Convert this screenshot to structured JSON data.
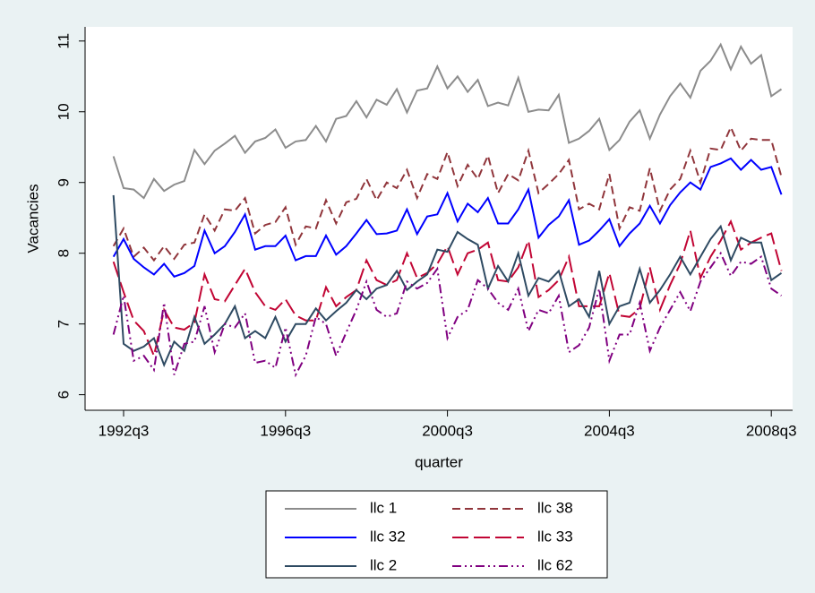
{
  "chart_data": {
    "type": "line",
    "ylabel": "Vacancies",
    "xlabel": "quarter",
    "x": [
      "1992q2",
      "1992q3",
      "1992q4",
      "1993q1",
      "1993q2",
      "1993q3",
      "1993q4",
      "1994q1",
      "1994q2",
      "1994q3",
      "1994q4",
      "1995q1",
      "1995q2",
      "1995q3",
      "1995q4",
      "1996q1",
      "1996q2",
      "1996q3",
      "1996q4",
      "1997q1",
      "1997q2",
      "1997q3",
      "1997q4",
      "1998q1",
      "1998q2",
      "1998q3",
      "1998q4",
      "1999q1",
      "1999q2",
      "1999q3",
      "1999q4",
      "2000q1",
      "2000q2",
      "2000q3",
      "2000q4",
      "2001q1",
      "2001q2",
      "2001q3",
      "2001q4",
      "2002q1",
      "2002q2",
      "2002q3",
      "2002q4",
      "2003q1",
      "2003q2",
      "2003q3",
      "2003q4",
      "2004q1",
      "2004q2",
      "2004q3",
      "2004q4",
      "2005q1",
      "2005q2",
      "2005q3",
      "2005q4",
      "2006q1",
      "2006q2",
      "2006q3",
      "2006q4",
      "2007q1",
      "2007q2",
      "2007q3",
      "2007q4",
      "2008q1",
      "2008q2",
      "2008q3",
      "2008q4"
    ],
    "xticks": [
      "1992q3",
      "1996q3",
      "2000q3",
      "2004q3",
      "2008q3"
    ],
    "ylim": [
      5.78,
      11.2
    ],
    "yticks": [
      6,
      7,
      8,
      9,
      10,
      11
    ],
    "grid": false,
    "series": [
      {
        "name": "llc 1",
        "color": "#8c8c8c",
        "style": "solid",
        "values": [
          9.37,
          8.92,
          8.9,
          8.78,
          9.05,
          8.88,
          8.97,
          9.02,
          9.46,
          9.26,
          9.45,
          9.55,
          9.66,
          9.42,
          9.58,
          9.63,
          9.75,
          9.49,
          9.58,
          9.6,
          9.8,
          9.58,
          9.9,
          9.94,
          10.15,
          9.92,
          10.17,
          10.1,
          10.32,
          9.99,
          10.3,
          10.33,
          10.64,
          10.33,
          10.5,
          10.28,
          10.45,
          10.08,
          10.13,
          10.09,
          10.48,
          10.0,
          10.03,
          10.02,
          10.24,
          9.56,
          9.62,
          9.73,
          9.9,
          9.46,
          9.6,
          9.86,
          10.02,
          9.62,
          9.96,
          10.22,
          10.4,
          10.2,
          10.58,
          10.72,
          10.95,
          10.6,
          10.92,
          10.68,
          10.8,
          10.22,
          10.32
        ]
      },
      {
        "name": "llc 38",
        "color": "#90353b",
        "style": "dash",
        "values": [
          8.1,
          8.35,
          7.95,
          8.08,
          7.9,
          8.1,
          7.92,
          8.12,
          8.15,
          8.55,
          8.32,
          8.62,
          8.6,
          8.78,
          8.28,
          8.4,
          8.44,
          8.65,
          8.12,
          8.38,
          8.35,
          8.75,
          8.42,
          8.72,
          8.77,
          9.05,
          8.75,
          9.0,
          8.92,
          9.18,
          8.78,
          9.12,
          9.05,
          9.43,
          8.95,
          9.25,
          9.05,
          9.38,
          8.85,
          9.12,
          9.03,
          9.45,
          8.85,
          8.98,
          9.12,
          9.32,
          8.62,
          8.7,
          8.62,
          9.12,
          8.35,
          8.65,
          8.6,
          9.2,
          8.6,
          8.9,
          9.05,
          9.45,
          9.0,
          9.48,
          9.46,
          9.78,
          9.45,
          9.62,
          9.6,
          9.6,
          9.08
        ]
      },
      {
        "name": "llc 32",
        "color": "#0000ff",
        "style": "solid",
        "values": [
          7.95,
          8.2,
          7.92,
          7.8,
          7.7,
          7.85,
          7.67,
          7.72,
          7.82,
          8.32,
          8.0,
          8.1,
          8.3,
          8.55,
          8.05,
          8.1,
          8.1,
          8.25,
          7.9,
          7.96,
          7.96,
          8.25,
          7.98,
          8.1,
          8.28,
          8.47,
          8.27,
          8.28,
          8.32,
          8.62,
          8.27,
          8.52,
          8.55,
          8.85,
          8.45,
          8.7,
          8.58,
          8.78,
          8.42,
          8.42,
          8.62,
          8.9,
          8.22,
          8.4,
          8.52,
          8.75,
          8.12,
          8.18,
          8.32,
          8.48,
          8.1,
          8.28,
          8.42,
          8.67,
          8.42,
          8.68,
          8.86,
          9.0,
          8.9,
          9.22,
          9.27,
          9.34,
          9.18,
          9.32,
          9.18,
          9.22,
          8.83
        ]
      },
      {
        "name": "llc 33",
        "color": "#c10534",
        "style": "longdash",
        "values": [
          7.88,
          7.45,
          7.05,
          6.9,
          6.55,
          7.2,
          6.95,
          6.92,
          7.02,
          7.7,
          7.35,
          7.32,
          7.55,
          7.78,
          7.45,
          7.25,
          7.2,
          7.35,
          7.12,
          7.05,
          7.05,
          7.52,
          7.25,
          7.38,
          7.48,
          7.9,
          7.62,
          7.55,
          7.62,
          8.0,
          7.65,
          7.72,
          7.85,
          8.1,
          7.7,
          8.0,
          8.05,
          8.15,
          7.62,
          7.6,
          7.8,
          8.18,
          7.38,
          7.48,
          7.62,
          7.95,
          7.25,
          7.25,
          7.25,
          7.72,
          7.12,
          7.1,
          7.22,
          7.8,
          7.2,
          7.55,
          7.85,
          8.32,
          7.65,
          7.95,
          8.18,
          8.45,
          8.05,
          8.15,
          8.22,
          8.28,
          7.75
        ]
      },
      {
        "name": "llc 2",
        "color": "#2e4a62",
        "style": "solid",
        "values": [
          8.82,
          6.72,
          6.62,
          6.68,
          6.8,
          6.42,
          6.75,
          6.62,
          7.1,
          6.72,
          6.85,
          7.0,
          7.25,
          6.8,
          6.9,
          6.8,
          7.1,
          6.75,
          7.0,
          7.0,
          7.22,
          7.05,
          7.18,
          7.3,
          7.48,
          7.35,
          7.5,
          7.55,
          7.75,
          7.48,
          7.6,
          7.7,
          8.05,
          8.02,
          8.3,
          8.2,
          8.12,
          7.5,
          7.82,
          7.6,
          8.0,
          7.4,
          7.65,
          7.6,
          7.75,
          7.25,
          7.35,
          7.1,
          7.75,
          7.0,
          7.25,
          7.3,
          7.78,
          7.3,
          7.48,
          7.7,
          7.95,
          7.7,
          7.95,
          8.2,
          8.38,
          7.9,
          8.22,
          8.15,
          8.15,
          7.62,
          7.72
        ]
      },
      {
        "name": "llc 62",
        "color": "#800080",
        "style": "dashdotdot",
        "values": [
          6.85,
          7.4,
          6.48,
          6.55,
          6.35,
          7.3,
          6.28,
          6.72,
          6.75,
          7.25,
          6.6,
          7.0,
          6.95,
          7.15,
          6.45,
          6.48,
          6.38,
          6.95,
          6.28,
          6.55,
          7.1,
          7.0,
          6.55,
          6.88,
          7.2,
          7.6,
          7.2,
          7.1,
          7.15,
          7.6,
          7.5,
          7.58,
          7.78,
          6.8,
          7.1,
          7.2,
          7.62,
          7.5,
          7.3,
          7.2,
          7.5,
          6.9,
          7.2,
          7.15,
          7.4,
          6.6,
          6.7,
          6.95,
          7.5,
          6.48,
          6.85,
          6.85,
          7.3,
          6.62,
          6.95,
          7.2,
          7.45,
          7.18,
          7.6,
          7.8,
          8.0,
          7.68,
          7.88,
          7.85,
          7.95,
          7.5,
          7.4
        ]
      }
    ]
  }
}
